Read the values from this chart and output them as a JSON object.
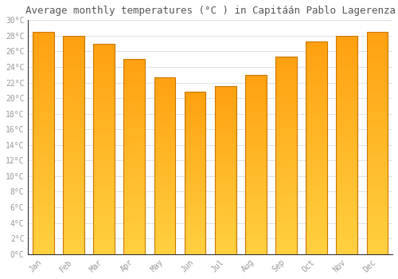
{
  "title": "Average monthly temperatures (°C ) in Capitáán Pablo Lagerenza",
  "months": [
    "Jan",
    "Feb",
    "Mar",
    "Apr",
    "May",
    "Jun",
    "Jul",
    "Aug",
    "Sep",
    "Oct",
    "Nov",
    "Dec"
  ],
  "temperatures": [
    28.5,
    28.0,
    27.0,
    25.0,
    22.7,
    20.8,
    21.5,
    23.0,
    25.3,
    27.3,
    28.0,
    28.5
  ],
  "color_bottom": "#FFD040",
  "color_top": "#FFA010",
  "bar_edge_color": "#CC7700",
  "ylim": [
    0,
    30
  ],
  "yticks": [
    0,
    2,
    4,
    6,
    8,
    10,
    12,
    14,
    16,
    18,
    20,
    22,
    24,
    26,
    28,
    30
  ],
  "ytick_labels": [
    "0°C",
    "2°C",
    "4°C",
    "6°C",
    "8°C",
    "10°C",
    "12°C",
    "14°C",
    "16°C",
    "18°C",
    "20°C",
    "22°C",
    "24°C",
    "26°C",
    "28°C",
    "30°C"
  ],
  "background_color": "#ffffff",
  "grid_color": "#dddddd",
  "tick_label_color": "#999999",
  "title_color": "#555555",
  "title_fontsize": 9,
  "tick_fontsize": 7,
  "bar_width": 0.7,
  "n_grad": 200
}
